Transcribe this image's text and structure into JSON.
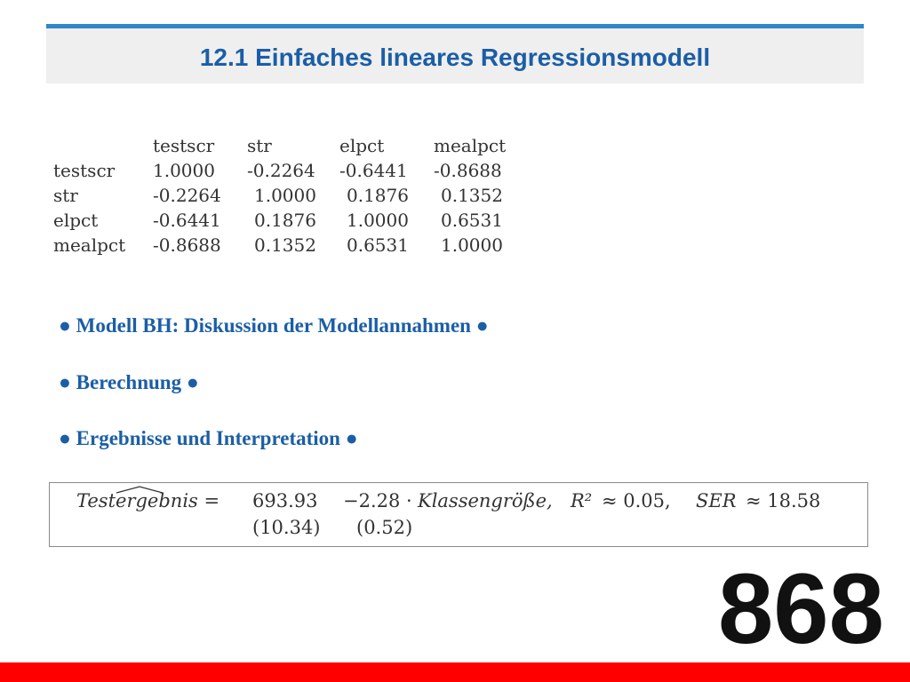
{
  "header": {
    "title": "12.1 Einfaches lineares Regressionsmodell"
  },
  "correlation_table": {
    "columns": [
      "",
      "testscr",
      "str",
      "elpct",
      "mealpct"
    ],
    "rows": [
      [
        "testscr",
        "1.0000",
        "-0.2264",
        "-0.6441",
        "-0.8688"
      ],
      [
        "str",
        "-0.2264",
        "1.0000",
        "0.1876",
        "0.1352"
      ],
      [
        "elpct",
        "-0.6441",
        "0.1876",
        "1.0000",
        "0.6531"
      ],
      [
        "mealpct",
        "-0.8688",
        "0.1352",
        "0.6531",
        "1.0000"
      ]
    ]
  },
  "bullets": [
    "● Modell BH: Diskussion der Modellannahmen ●",
    "● Berechnung ●",
    "● Ergebnisse und Interpretation ●"
  ],
  "equation": {
    "lhs": "Testergebnis =",
    "intercept": "693.93",
    "slope_term": "−2.28 ·",
    "variable": "Klassengröße,",
    "r2_symbol": "R²",
    "r2_value": "≈ 0.05,",
    "ser_symbol": "SER",
    "ser_value": "≈ 18.58",
    "se_intercept": "(10.34)",
    "se_slope": "(0.52)"
  },
  "slide_number": "868",
  "colors": {
    "accent": "#1b5ea6",
    "title_rule": "#2f86c8",
    "footer_bar": "#ff0000"
  }
}
